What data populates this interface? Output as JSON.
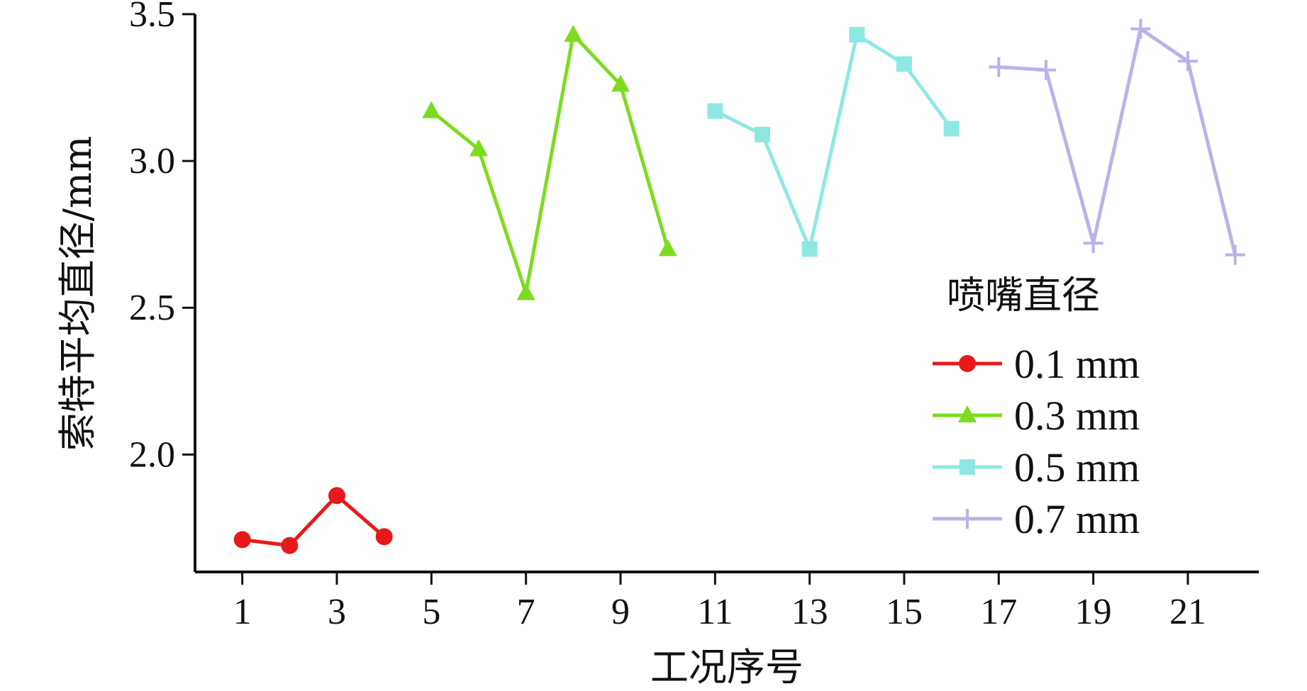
{
  "chart_data": {
    "type": "line",
    "xlabel": "工况序号",
    "ylabel": "索特平均直径/mm",
    "xlim": [
      0,
      22.5
    ],
    "ylim": [
      1.6,
      3.5
    ],
    "x_ticks": [
      1,
      3,
      5,
      7,
      9,
      11,
      13,
      15,
      17,
      19,
      21
    ],
    "y_ticks": [
      2.0,
      2.5,
      3.0,
      3.5
    ],
    "x_tick_labels": [
      "1",
      "3",
      "5",
      "7",
      "9",
      "11",
      "13",
      "15",
      "17",
      "19",
      "21"
    ],
    "y_tick_labels": [
      "2.0",
      "2.5",
      "3.0",
      "3.5"
    ],
    "grid": false,
    "legend": {
      "title": "喷嘴直径",
      "placement": "right"
    },
    "series": [
      {
        "name": "0.1 mm",
        "color": "#e8191a",
        "marker": "circle",
        "x": [
          1,
          2,
          3,
          4
        ],
        "y": [
          1.71,
          1.69,
          1.86,
          1.72
        ]
      },
      {
        "name": "0.3 mm",
        "color": "#7ddc1f",
        "marker": "triangle",
        "x": [
          5,
          6,
          7,
          8,
          9,
          10
        ],
        "y": [
          3.17,
          3.04,
          2.55,
          3.43,
          3.26,
          2.7
        ]
      },
      {
        "name": "0.5 mm",
        "color": "#8ee8e2",
        "marker": "square",
        "x": [
          11,
          12,
          13,
          14,
          15,
          16
        ],
        "y": [
          3.17,
          3.09,
          2.7,
          3.43,
          3.33,
          3.11
        ]
      },
      {
        "name": "0.7 mm",
        "color": "#b8b3e8",
        "marker": "plus",
        "x": [
          17,
          18,
          19,
          20,
          21,
          22
        ],
        "y": [
          3.32,
          3.31,
          2.72,
          3.45,
          3.34,
          2.68
        ]
      }
    ]
  }
}
